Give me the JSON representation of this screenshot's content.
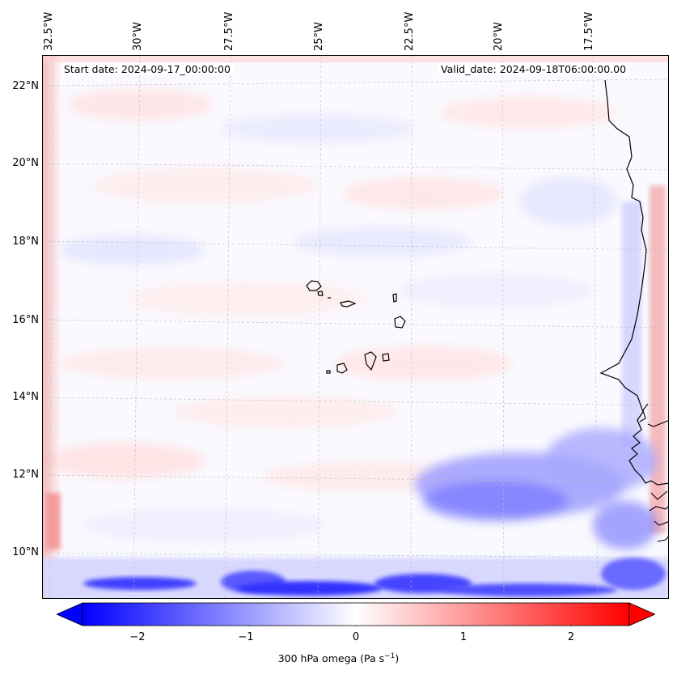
{
  "header": {
    "start_date": "Start date: 2024-09-17_00:00:00",
    "valid_date": "Valid_date: 2024-09-18T06:00:00.00"
  },
  "map": {
    "lon_labels": [
      "32.5°W",
      "30°W",
      "27.5°W",
      "25°W",
      "22.5°W",
      "20°W",
      "17.5°W"
    ],
    "lat_labels": [
      "22°N",
      "20°N",
      "18°N",
      "16°N",
      "14°N",
      "12°N",
      "10°N"
    ]
  },
  "colorbar": {
    "ticks": [
      "−2",
      "−1",
      "0",
      "1",
      "2"
    ],
    "label": "300 hPa omega (Pa s",
    "label_sup": "−1",
    "label_end": ")",
    "min": -2.6,
    "max": 2.6,
    "negative_color": "#0000ff",
    "positive_color": "#ff0000"
  }
}
